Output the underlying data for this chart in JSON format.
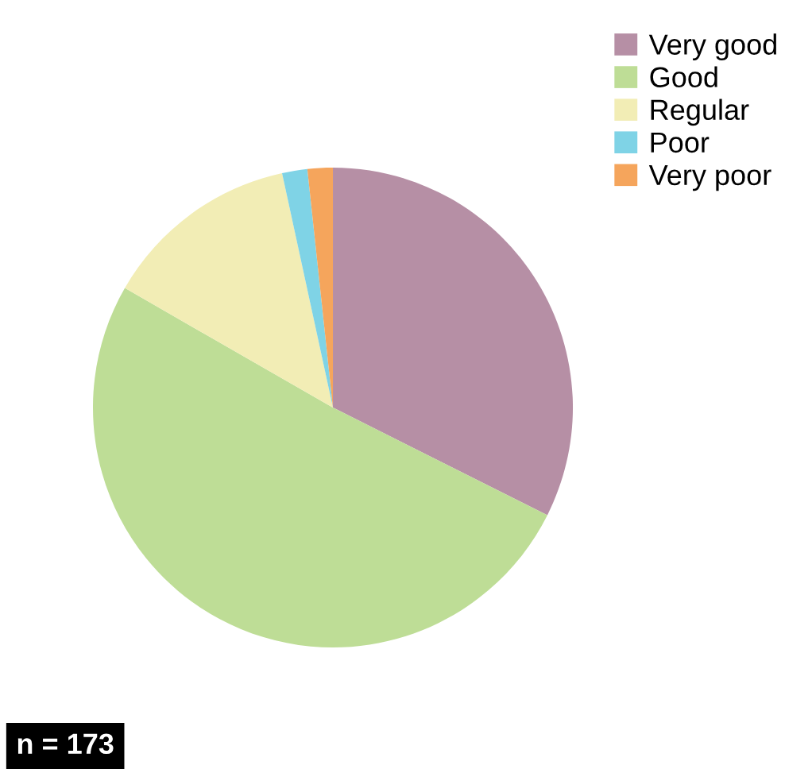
{
  "chart_data": {
    "type": "pie",
    "categories": [
      "Very good",
      "Good",
      "Regular",
      "Poor",
      "Very poor"
    ],
    "values": [
      32.4,
      50.9,
      13.3,
      1.7,
      1.7
    ],
    "colors": [
      "#b68fa5",
      "#bedd96",
      "#f2edb5",
      "#7fd3e6",
      "#f5a55c"
    ],
    "legend": "top right",
    "annotations": [
      "n = 173"
    ]
  }
}
